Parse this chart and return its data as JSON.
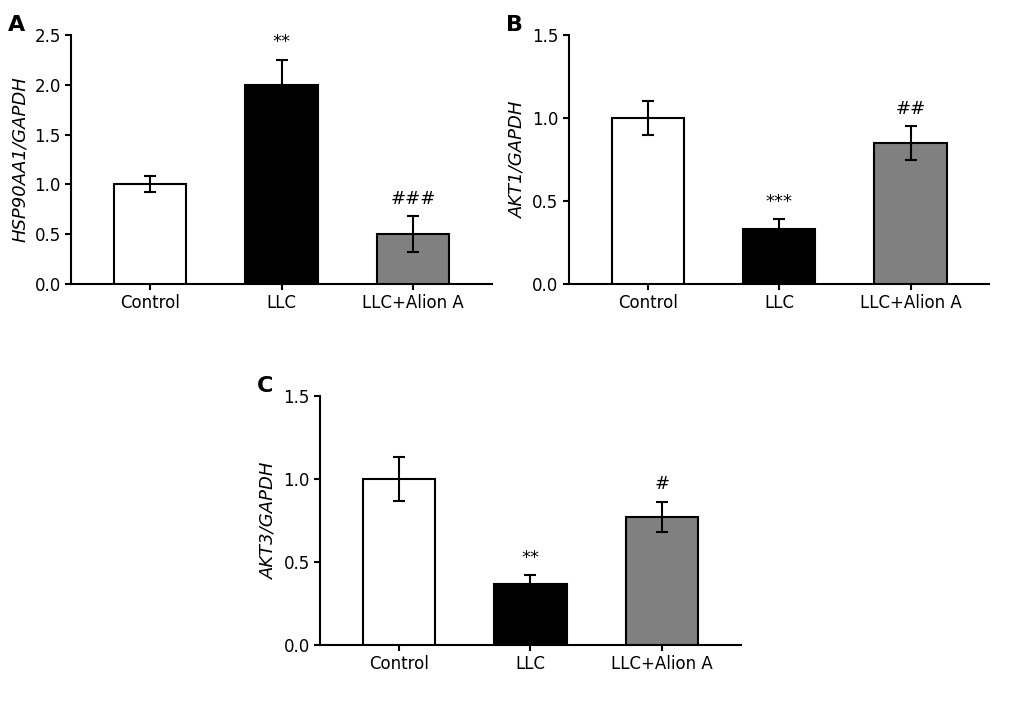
{
  "panel_A": {
    "categories": [
      "Control",
      "LLC",
      "LLC+Alion A"
    ],
    "values": [
      1.0,
      2.0,
      0.5
    ],
    "errors": [
      0.08,
      0.25,
      0.18
    ],
    "colors": [
      "white",
      "black",
      "#808080"
    ],
    "ylabel": "HSP90AA1/GAPDH",
    "ylim": [
      0,
      2.5
    ],
    "yticks": [
      0.0,
      0.5,
      1.0,
      1.5,
      2.0,
      2.5
    ],
    "annotations": [
      {
        "bar": 1,
        "text": "**"
      },
      {
        "bar": 2,
        "text": "###"
      }
    ],
    "panel_label": "A"
  },
  "panel_B": {
    "categories": [
      "Control",
      "LLC",
      "LLC+Alion A"
    ],
    "values": [
      1.0,
      0.33,
      0.85
    ],
    "errors": [
      0.1,
      0.06,
      0.1
    ],
    "colors": [
      "white",
      "black",
      "#808080"
    ],
    "ylabel": "AKT1/GAPDH",
    "ylim": [
      0,
      1.5
    ],
    "yticks": [
      0.0,
      0.5,
      1.0,
      1.5
    ],
    "annotations": [
      {
        "bar": 1,
        "text": "***"
      },
      {
        "bar": 2,
        "text": "##"
      }
    ],
    "panel_label": "B"
  },
  "panel_C": {
    "categories": [
      "Control",
      "LLC",
      "LLC+Alion A"
    ],
    "values": [
      1.0,
      0.37,
      0.77
    ],
    "errors": [
      0.13,
      0.05,
      0.09
    ],
    "colors": [
      "white",
      "black",
      "#808080"
    ],
    "ylabel": "AKT3/GAPDH",
    "ylim": [
      0,
      1.5
    ],
    "yticks": [
      0.0,
      0.5,
      1.0,
      1.5
    ],
    "annotations": [
      {
        "bar": 1,
        "text": "**"
      },
      {
        "bar": 2,
        "text": "#"
      }
    ],
    "panel_label": "C"
  },
  "bar_width": 0.55,
  "edgecolor": "black",
  "linewidth": 1.5,
  "capsize": 4,
  "tick_fontsize": 12,
  "label_fontsize": 13,
  "annot_fontsize": 13,
  "panel_label_fontsize": 16,
  "background_color": "white"
}
